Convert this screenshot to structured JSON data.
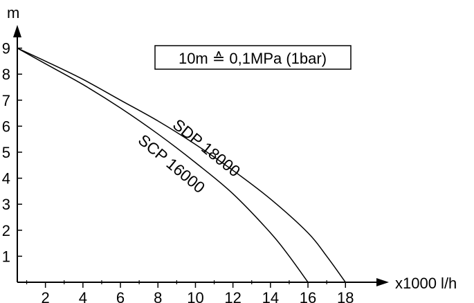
{
  "chart_data": {
    "type": "line",
    "title": "",
    "xlabel": "x1000 l/h",
    "ylabel": "m",
    "xlim": [
      0.5,
      18.5
    ],
    "ylim": [
      0,
      9
    ],
    "x_ticks": [
      2,
      4,
      6,
      8,
      10,
      12,
      14,
      16,
      18
    ],
    "x_minor_ticks": [
      1,
      3,
      5,
      7,
      9,
      11,
      13,
      15,
      17
    ],
    "y_ticks": [
      1,
      2,
      3,
      4,
      5,
      6,
      7,
      8,
      9
    ],
    "grid": false,
    "legend": "none",
    "annotation": "10m ≙ 0,1MPa (1bar)",
    "series": [
      {
        "name": "SDP 18000",
        "x": [
          0.5,
          2,
          4,
          6,
          8,
          10,
          12,
          14,
          16,
          17,
          18
        ],
        "y": [
          9.0,
          8.5,
          7.8,
          7.0,
          6.2,
          5.3,
          4.3,
          3.2,
          1.9,
          1.0,
          0.0
        ]
      },
      {
        "name": "SCP 16000",
        "x": [
          0.5,
          2,
          4,
          6,
          8,
          10,
          12,
          14,
          15,
          16
        ],
        "y": [
          9.0,
          8.4,
          7.6,
          6.7,
          5.7,
          4.6,
          3.4,
          1.9,
          1.0,
          0.0
        ]
      }
    ]
  }
}
